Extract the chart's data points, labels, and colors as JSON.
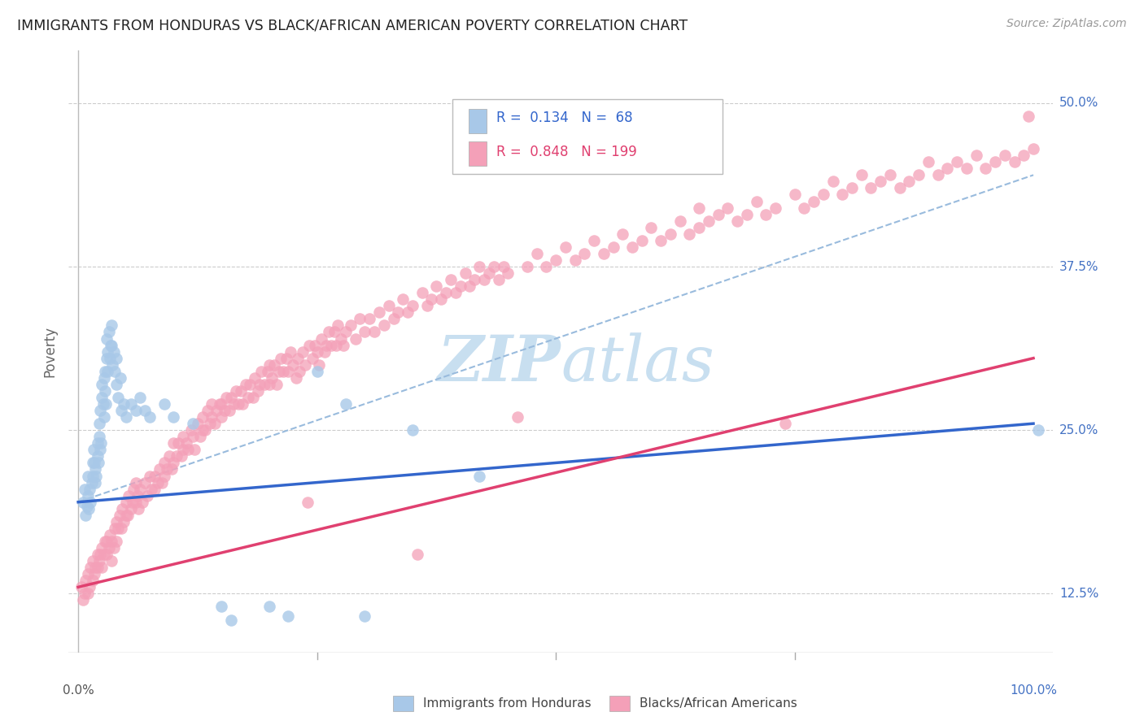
{
  "title": "IMMIGRANTS FROM HONDURAS VS BLACK/AFRICAN AMERICAN POVERTY CORRELATION CHART",
  "source": "Source: ZipAtlas.com",
  "ylabel": "Poverty",
  "ytick_labels": [
    "12.5%",
    "25.0%",
    "37.5%",
    "50.0%"
  ],
  "ytick_values": [
    0.125,
    0.25,
    0.375,
    0.5
  ],
  "xlim": [
    -0.01,
    1.02
  ],
  "ylim": [
    0.08,
    0.54
  ],
  "color_blue": "#a8c8e8",
  "color_pink": "#f4a0b8",
  "line_blue": "#3366cc",
  "line_pink": "#e04070",
  "line_dash": "#99bbdd",
  "watermark_color": "#c8dff0",
  "background_color": "#ffffff",
  "grid_color": "#cccccc",
  "blue_line_x": [
    0.0,
    1.0
  ],
  "blue_line_y": [
    0.195,
    0.255
  ],
  "pink_line_x": [
    0.0,
    1.0
  ],
  "pink_line_y": [
    0.13,
    0.305
  ],
  "dash_line_x": [
    0.0,
    1.0
  ],
  "dash_line_y": [
    0.195,
    0.445
  ],
  "blue_scatter": [
    [
      0.005,
      0.195
    ],
    [
      0.007,
      0.205
    ],
    [
      0.008,
      0.185
    ],
    [
      0.009,
      0.192
    ],
    [
      0.01,
      0.2
    ],
    [
      0.01,
      0.215
    ],
    [
      0.011,
      0.19
    ],
    [
      0.012,
      0.205
    ],
    [
      0.013,
      0.195
    ],
    [
      0.014,
      0.21
    ],
    [
      0.015,
      0.225
    ],
    [
      0.015,
      0.215
    ],
    [
      0.016,
      0.235
    ],
    [
      0.017,
      0.225
    ],
    [
      0.018,
      0.22
    ],
    [
      0.018,
      0.21
    ],
    [
      0.019,
      0.215
    ],
    [
      0.02,
      0.23
    ],
    [
      0.02,
      0.24
    ],
    [
      0.021,
      0.225
    ],
    [
      0.022,
      0.245
    ],
    [
      0.022,
      0.255
    ],
    [
      0.023,
      0.235
    ],
    [
      0.023,
      0.265
    ],
    [
      0.024,
      0.24
    ],
    [
      0.025,
      0.275
    ],
    [
      0.025,
      0.285
    ],
    [
      0.026,
      0.27
    ],
    [
      0.027,
      0.29
    ],
    [
      0.027,
      0.26
    ],
    [
      0.028,
      0.295
    ],
    [
      0.028,
      0.28
    ],
    [
      0.029,
      0.27
    ],
    [
      0.03,
      0.32
    ],
    [
      0.03,
      0.305
    ],
    [
      0.031,
      0.295
    ],
    [
      0.031,
      0.31
    ],
    [
      0.032,
      0.325
    ],
    [
      0.033,
      0.305
    ],
    [
      0.034,
      0.315
    ],
    [
      0.035,
      0.33
    ],
    [
      0.035,
      0.315
    ],
    [
      0.036,
      0.3
    ],
    [
      0.037,
      0.31
    ],
    [
      0.038,
      0.295
    ],
    [
      0.04,
      0.285
    ],
    [
      0.04,
      0.305
    ],
    [
      0.042,
      0.275
    ],
    [
      0.044,
      0.29
    ],
    [
      0.045,
      0.265
    ],
    [
      0.048,
      0.27
    ],
    [
      0.05,
      0.26
    ],
    [
      0.055,
      0.27
    ],
    [
      0.06,
      0.265
    ],
    [
      0.065,
      0.275
    ],
    [
      0.07,
      0.265
    ],
    [
      0.075,
      0.26
    ],
    [
      0.09,
      0.27
    ],
    [
      0.1,
      0.26
    ],
    [
      0.12,
      0.255
    ],
    [
      0.15,
      0.115
    ],
    [
      0.16,
      0.105
    ],
    [
      0.2,
      0.115
    ],
    [
      0.22,
      0.108
    ],
    [
      0.25,
      0.295
    ],
    [
      0.28,
      0.27
    ],
    [
      0.3,
      0.108
    ],
    [
      0.35,
      0.25
    ],
    [
      0.42,
      0.215
    ],
    [
      1.005,
      0.25
    ]
  ],
  "pink_scatter": [
    [
      0.003,
      0.13
    ],
    [
      0.005,
      0.12
    ],
    [
      0.007,
      0.125
    ],
    [
      0.008,
      0.135
    ],
    [
      0.01,
      0.125
    ],
    [
      0.01,
      0.14
    ],
    [
      0.012,
      0.13
    ],
    [
      0.013,
      0.145
    ],
    [
      0.015,
      0.135
    ],
    [
      0.015,
      0.15
    ],
    [
      0.017,
      0.14
    ],
    [
      0.018,
      0.145
    ],
    [
      0.02,
      0.155
    ],
    [
      0.02,
      0.145
    ],
    [
      0.022,
      0.15
    ],
    [
      0.023,
      0.155
    ],
    [
      0.025,
      0.16
    ],
    [
      0.025,
      0.145
    ],
    [
      0.027,
      0.155
    ],
    [
      0.028,
      0.165
    ],
    [
      0.03,
      0.155
    ],
    [
      0.03,
      0.165
    ],
    [
      0.032,
      0.16
    ],
    [
      0.033,
      0.17
    ],
    [
      0.035,
      0.165
    ],
    [
      0.035,
      0.15
    ],
    [
      0.037,
      0.16
    ],
    [
      0.038,
      0.175
    ],
    [
      0.04,
      0.165
    ],
    [
      0.04,
      0.18
    ],
    [
      0.042,
      0.175
    ],
    [
      0.043,
      0.185
    ],
    [
      0.045,
      0.175
    ],
    [
      0.046,
      0.19
    ],
    [
      0.048,
      0.18
    ],
    [
      0.05,
      0.185
    ],
    [
      0.05,
      0.195
    ],
    [
      0.052,
      0.185
    ],
    [
      0.053,
      0.2
    ],
    [
      0.055,
      0.19
    ],
    [
      0.057,
      0.195
    ],
    [
      0.058,
      0.205
    ],
    [
      0.06,
      0.195
    ],
    [
      0.06,
      0.21
    ],
    [
      0.062,
      0.2
    ],
    [
      0.063,
      0.19
    ],
    [
      0.065,
      0.205
    ],
    [
      0.067,
      0.195
    ],
    [
      0.07,
      0.21
    ],
    [
      0.072,
      0.2
    ],
    [
      0.075,
      0.215
    ],
    [
      0.077,
      0.205
    ],
    [
      0.08,
      0.215
    ],
    [
      0.08,
      0.205
    ],
    [
      0.083,
      0.21
    ],
    [
      0.085,
      0.22
    ],
    [
      0.088,
      0.21
    ],
    [
      0.09,
      0.225
    ],
    [
      0.09,
      0.215
    ],
    [
      0.093,
      0.22
    ],
    [
      0.095,
      0.23
    ],
    [
      0.098,
      0.22
    ],
    [
      0.1,
      0.225
    ],
    [
      0.1,
      0.24
    ],
    [
      0.103,
      0.23
    ],
    [
      0.105,
      0.24
    ],
    [
      0.108,
      0.23
    ],
    [
      0.11,
      0.245
    ],
    [
      0.11,
      0.235
    ],
    [
      0.113,
      0.24
    ],
    [
      0.115,
      0.235
    ],
    [
      0.118,
      0.25
    ],
    [
      0.12,
      0.245
    ],
    [
      0.122,
      0.235
    ],
    [
      0.125,
      0.255
    ],
    [
      0.128,
      0.245
    ],
    [
      0.13,
      0.25
    ],
    [
      0.13,
      0.26
    ],
    [
      0.133,
      0.25
    ],
    [
      0.135,
      0.265
    ],
    [
      0.138,
      0.255
    ],
    [
      0.14,
      0.26
    ],
    [
      0.14,
      0.27
    ],
    [
      0.143,
      0.255
    ],
    [
      0.145,
      0.265
    ],
    [
      0.148,
      0.27
    ],
    [
      0.15,
      0.26
    ],
    [
      0.15,
      0.27
    ],
    [
      0.153,
      0.265
    ],
    [
      0.155,
      0.275
    ],
    [
      0.158,
      0.265
    ],
    [
      0.16,
      0.275
    ],
    [
      0.163,
      0.27
    ],
    [
      0.165,
      0.28
    ],
    [
      0.168,
      0.27
    ],
    [
      0.17,
      0.28
    ],
    [
      0.172,
      0.27
    ],
    [
      0.175,
      0.285
    ],
    [
      0.178,
      0.275
    ],
    [
      0.18,
      0.285
    ],
    [
      0.183,
      0.275
    ],
    [
      0.185,
      0.29
    ],
    [
      0.188,
      0.28
    ],
    [
      0.19,
      0.285
    ],
    [
      0.192,
      0.295
    ],
    [
      0.195,
      0.285
    ],
    [
      0.198,
      0.295
    ],
    [
      0.2,
      0.285
    ],
    [
      0.2,
      0.3
    ],
    [
      0.203,
      0.29
    ],
    [
      0.205,
      0.3
    ],
    [
      0.208,
      0.285
    ],
    [
      0.21,
      0.295
    ],
    [
      0.212,
      0.305
    ],
    [
      0.215,
      0.295
    ],
    [
      0.218,
      0.305
    ],
    [
      0.22,
      0.295
    ],
    [
      0.222,
      0.31
    ],
    [
      0.225,
      0.3
    ],
    [
      0.228,
      0.29
    ],
    [
      0.23,
      0.305
    ],
    [
      0.232,
      0.295
    ],
    [
      0.235,
      0.31
    ],
    [
      0.238,
      0.3
    ],
    [
      0.24,
      0.195
    ],
    [
      0.242,
      0.315
    ],
    [
      0.245,
      0.305
    ],
    [
      0.248,
      0.315
    ],
    [
      0.25,
      0.31
    ],
    [
      0.252,
      0.3
    ],
    [
      0.255,
      0.32
    ],
    [
      0.258,
      0.31
    ],
    [
      0.26,
      0.315
    ],
    [
      0.262,
      0.325
    ],
    [
      0.265,
      0.315
    ],
    [
      0.268,
      0.325
    ],
    [
      0.27,
      0.315
    ],
    [
      0.272,
      0.33
    ],
    [
      0.275,
      0.32
    ],
    [
      0.278,
      0.315
    ],
    [
      0.28,
      0.325
    ],
    [
      0.285,
      0.33
    ],
    [
      0.29,
      0.32
    ],
    [
      0.295,
      0.335
    ],
    [
      0.3,
      0.325
    ],
    [
      0.305,
      0.335
    ],
    [
      0.31,
      0.325
    ],
    [
      0.315,
      0.34
    ],
    [
      0.32,
      0.33
    ],
    [
      0.325,
      0.345
    ],
    [
      0.33,
      0.335
    ],
    [
      0.335,
      0.34
    ],
    [
      0.34,
      0.35
    ],
    [
      0.345,
      0.34
    ],
    [
      0.35,
      0.345
    ],
    [
      0.355,
      0.155
    ],
    [
      0.36,
      0.355
    ],
    [
      0.365,
      0.345
    ],
    [
      0.37,
      0.35
    ],
    [
      0.375,
      0.36
    ],
    [
      0.38,
      0.35
    ],
    [
      0.385,
      0.355
    ],
    [
      0.39,
      0.365
    ],
    [
      0.395,
      0.355
    ],
    [
      0.4,
      0.36
    ],
    [
      0.405,
      0.37
    ],
    [
      0.41,
      0.36
    ],
    [
      0.415,
      0.365
    ],
    [
      0.42,
      0.375
    ],
    [
      0.425,
      0.365
    ],
    [
      0.43,
      0.37
    ],
    [
      0.435,
      0.375
    ],
    [
      0.44,
      0.365
    ],
    [
      0.445,
      0.375
    ],
    [
      0.45,
      0.37
    ],
    [
      0.46,
      0.26
    ],
    [
      0.47,
      0.375
    ],
    [
      0.48,
      0.385
    ],
    [
      0.49,
      0.375
    ],
    [
      0.5,
      0.38
    ],
    [
      0.51,
      0.39
    ],
    [
      0.52,
      0.38
    ],
    [
      0.53,
      0.385
    ],
    [
      0.54,
      0.395
    ],
    [
      0.55,
      0.385
    ],
    [
      0.56,
      0.39
    ],
    [
      0.57,
      0.4
    ],
    [
      0.58,
      0.39
    ],
    [
      0.59,
      0.395
    ],
    [
      0.6,
      0.405
    ],
    [
      0.61,
      0.395
    ],
    [
      0.62,
      0.4
    ],
    [
      0.63,
      0.41
    ],
    [
      0.64,
      0.4
    ],
    [
      0.65,
      0.405
    ],
    [
      0.65,
      0.42
    ],
    [
      0.66,
      0.41
    ],
    [
      0.67,
      0.415
    ],
    [
      0.68,
      0.42
    ],
    [
      0.69,
      0.41
    ],
    [
      0.7,
      0.415
    ],
    [
      0.71,
      0.425
    ],
    [
      0.72,
      0.415
    ],
    [
      0.73,
      0.42
    ],
    [
      0.74,
      0.255
    ],
    [
      0.75,
      0.43
    ],
    [
      0.76,
      0.42
    ],
    [
      0.77,
      0.425
    ],
    [
      0.78,
      0.43
    ],
    [
      0.79,
      0.44
    ],
    [
      0.8,
      0.43
    ],
    [
      0.81,
      0.435
    ],
    [
      0.82,
      0.445
    ],
    [
      0.83,
      0.435
    ],
    [
      0.84,
      0.44
    ],
    [
      0.85,
      0.445
    ],
    [
      0.86,
      0.435
    ],
    [
      0.87,
      0.44
    ],
    [
      0.88,
      0.445
    ],
    [
      0.89,
      0.455
    ],
    [
      0.9,
      0.445
    ],
    [
      0.91,
      0.45
    ],
    [
      0.92,
      0.455
    ],
    [
      0.93,
      0.45
    ],
    [
      0.94,
      0.46
    ],
    [
      0.95,
      0.45
    ],
    [
      0.96,
      0.455
    ],
    [
      0.97,
      0.46
    ],
    [
      0.98,
      0.455
    ],
    [
      0.99,
      0.46
    ],
    [
      0.995,
      0.49
    ],
    [
      1.0,
      0.465
    ]
  ]
}
